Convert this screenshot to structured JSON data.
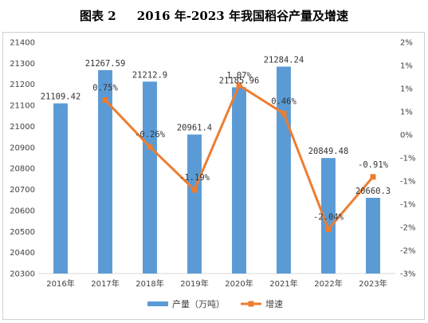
{
  "title": "图表 2     2016 年-2023 年我国稻谷产量及增速",
  "chart_data": {
    "type": "bar",
    "categories": [
      "2016年",
      "2017年",
      "2018年",
      "2019年",
      "2020年",
      "2021年",
      "2022年",
      "2023年"
    ],
    "series": [
      {
        "name": "产量（万吨）",
        "type": "bar",
        "axis": "left",
        "values": [
          21109.42,
          21267.59,
          21212.9,
          20961.4,
          21185.96,
          21284.24,
          20849.48,
          20660.3
        ],
        "labels": [
          "21109.42",
          "21267.59",
          "21212.9",
          "20961.4",
          "21185.96",
          "21284.24",
          "20849.48",
          "20660.3"
        ],
        "color": "#5b9bd5"
      },
      {
        "name": "增速",
        "type": "line",
        "axis": "right",
        "values": [
          null,
          0.75,
          -0.26,
          -1.19,
          1.07,
          0.46,
          -2.04,
          -0.91
        ],
        "labels": [
          "",
          "0.75%",
          "-0.26%",
          "-1.19%",
          "1.07%",
          "0.46%",
          "-2.04%",
          "-0.91%"
        ],
        "color": "#ed7d31"
      }
    ],
    "y_left": {
      "min": 20300,
      "max": 21400,
      "ticks": [
        20300,
        20400,
        20500,
        20600,
        20700,
        20800,
        20900,
        21000,
        21100,
        21200,
        21300,
        21400
      ]
    },
    "y_right": {
      "min": -3,
      "max": 2,
      "ticks": [
        -3,
        -2.5,
        -2,
        -1.5,
        -1,
        -0.5,
        0,
        0.5,
        1,
        1.5,
        2
      ],
      "tick_labels": [
        "-3%",
        "-2%",
        "-2%",
        "-1%",
        "-1%",
        "-1%",
        "0%",
        "1%",
        "1%",
        "1%",
        "2%"
      ]
    },
    "legend": {
      "position": "bottom"
    },
    "grid": false
  }
}
